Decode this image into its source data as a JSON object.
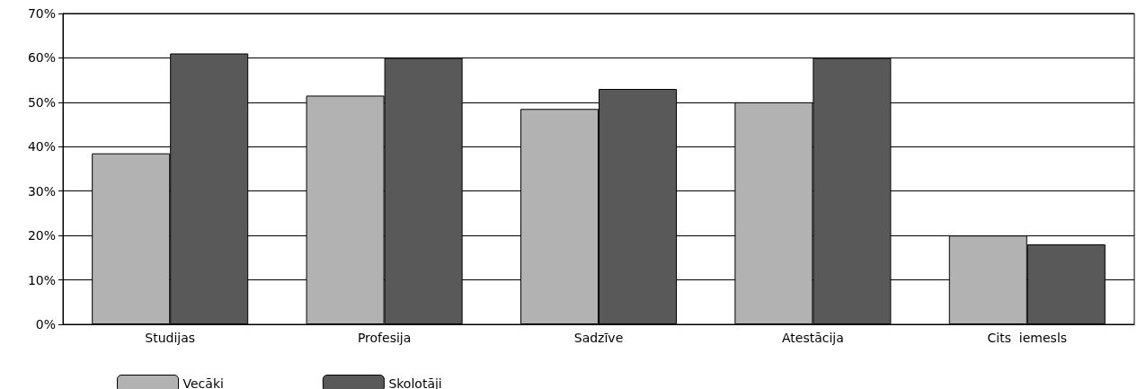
{
  "chart_data": {
    "type": "bar",
    "categories": [
      "Studijas",
      "Profesija",
      "Sadzīve",
      "Atestācija",
      "Cits  iemesls"
    ],
    "series": [
      {
        "name": "Vecāki",
        "color": "#b2b2b2",
        "values": [
          38.5,
          51.5,
          48.5,
          50,
          20
        ]
      },
      {
        "name": "Skolotāji",
        "color": "#595959",
        "values": [
          61,
          60,
          53,
          60,
          18
        ]
      }
    ],
    "ylim": [
      0,
      70
    ],
    "yticks": [
      {
        "value": 0,
        "label": "0%"
      },
      {
        "value": 10,
        "label": "10%"
      },
      {
        "value": 20,
        "label": "20%"
      },
      {
        "value": 30,
        "label": "30%"
      },
      {
        "value": 40,
        "label": "40%"
      },
      {
        "value": 50,
        "label": "50%"
      },
      {
        "value": 60,
        "label": "60%"
      },
      {
        "value": 70,
        "label": "70%"
      }
    ],
    "grid": "y",
    "legend": "bottom left"
  }
}
